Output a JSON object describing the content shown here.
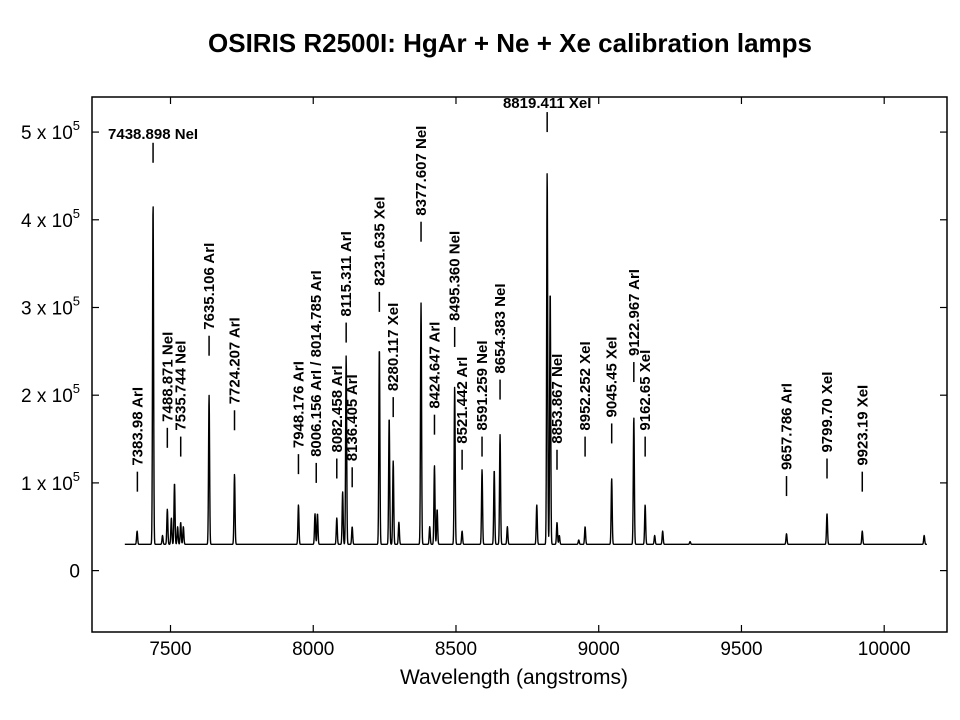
{
  "chart_data": {
    "type": "line",
    "title": "OSIRIS R2500I:  HgAr + Ne + Xe calibration lamps",
    "xlabel": "Wavelength (angstroms)",
    "ylabel": "",
    "xlim": [
      7225,
      10220
    ],
    "ylim": [
      -70000,
      540000
    ],
    "grid": false,
    "xticks": [
      {
        "value": 7500,
        "label": "7500"
      },
      {
        "value": 8000,
        "label": "8000"
      },
      {
        "value": 8500,
        "label": "8500"
      },
      {
        "value": 9000,
        "label": "9000"
      },
      {
        "value": 9500,
        "label": "9500"
      },
      {
        "value": 10000,
        "label": "10000"
      }
    ],
    "yticks": [
      {
        "value": 0,
        "mantissa": "0",
        "exp": ""
      },
      {
        "value": 100000,
        "mantissa": "1 x 10",
        "exp": "5"
      },
      {
        "value": 200000,
        "mantissa": "2 x 10",
        "exp": "5"
      },
      {
        "value": 300000,
        "mantissa": "3 x 10",
        "exp": "5"
      },
      {
        "value": 400000,
        "mantissa": "4 x 10",
        "exp": "5"
      },
      {
        "value": 500000,
        "mantissa": "5 x 10",
        "exp": "5"
      }
    ],
    "baseline": 30000,
    "x_range": [
      7340,
      10150
    ],
    "peaks": [
      [
        7383,
        45000
      ],
      [
        7438.9,
        420000
      ],
      [
        7472,
        40000
      ],
      [
        7488.9,
        70000
      ],
      [
        7503,
        60000
      ],
      [
        7514,
        100000
      ],
      [
        7525,
        50000
      ],
      [
        7535.7,
        55000
      ],
      [
        7545,
        50000
      ],
      [
        7635.1,
        200000
      ],
      [
        7724.2,
        110000
      ],
      [
        7948.2,
        75000
      ],
      [
        8006.2,
        65000
      ],
      [
        8014.8,
        65000
      ],
      [
        8082.5,
        60000
      ],
      [
        8103,
        90000
      ],
      [
        8115.3,
        245000
      ],
      [
        8136.4,
        50000
      ],
      [
        8231.6,
        255000
      ],
      [
        8266,
        175000
      ],
      [
        8280.1,
        125000
      ],
      [
        8300,
        55000
      ],
      [
        8377.6,
        305000
      ],
      [
        8408,
        50000
      ],
      [
        8424.6,
        120000
      ],
      [
        8434,
        70000
      ],
      [
        8495.4,
        210000
      ],
      [
        8521.4,
        45000
      ],
      [
        8591.3,
        115000
      ],
      [
        8634,
        115000
      ],
      [
        8654.4,
        155000
      ],
      [
        8680,
        50000
      ],
      [
        8783,
        75000
      ],
      [
        8819.4,
        455000
      ],
      [
        8830,
        320000
      ],
      [
        8853.9,
        55000
      ],
      [
        8862,
        40000
      ],
      [
        8930,
        35000
      ],
      [
        8952.3,
        50000
      ],
      [
        9045.4,
        105000
      ],
      [
        9122.97,
        175000
      ],
      [
        9162.65,
        75000
      ],
      [
        9196,
        40000
      ],
      [
        9224,
        45000
      ],
      [
        9320,
        33000
      ],
      [
        9657.8,
        42000
      ],
      [
        9799.7,
        65000
      ],
      [
        9923.2,
        45000
      ],
      [
        10140,
        40000
      ]
    ],
    "annotations": [
      {
        "x": 7383.98,
        "tip": 90000,
        "text": "7383.98 ArI",
        "rotated": true
      },
      {
        "x": 7438.898,
        "tip": 465000,
        "text": "7438.898 NeI",
        "rotated": false
      },
      {
        "x": 7488.871,
        "tip": 140000,
        "text": "7488.871 NeI",
        "rotated": true
      },
      {
        "x": 7535.744,
        "tip": 130000,
        "text": "7535.744 NeI",
        "rotated": true
      },
      {
        "x": 7635.106,
        "tip": 245000,
        "text": "7635.106 ArI",
        "rotated": true
      },
      {
        "x": 7724.207,
        "tip": 160000,
        "text": "7724.207 ArI",
        "rotated": true
      },
      {
        "x": 7948.176,
        "tip": 110000,
        "text": "7948.176 ArI",
        "rotated": true
      },
      {
        "x": 8010.47,
        "tip": 100000,
        "text": "8006.156 ArI / 8014.785 ArI",
        "rotated": true
      },
      {
        "x": 8082.458,
        "tip": 105000,
        "text": "8082.458 ArI",
        "rotated": true
      },
      {
        "x": 8115.311,
        "tip": 260000,
        "text": "8115.311 ArI",
        "rotated": true
      },
      {
        "x": 8136.405,
        "tip": 95000,
        "text": "8136.405 ArI",
        "rotated": true
      },
      {
        "x": 8231.635,
        "tip": 295000,
        "text": "8231.635 XeI",
        "rotated": true
      },
      {
        "x": 8280.117,
        "tip": 175000,
        "text": "8280.117 XeI",
        "rotated": true
      },
      {
        "x": 8377.607,
        "tip": 375000,
        "text": "8377.607 NeI",
        "rotated": true
      },
      {
        "x": 8424.647,
        "tip": 155000,
        "text": "8424.647 ArI",
        "rotated": true
      },
      {
        "x": 8495.36,
        "tip": 255000,
        "text": "8495.360 NeI",
        "rotated": true
      },
      {
        "x": 8521.442,
        "tip": 115000,
        "text": "8521.442 ArI",
        "rotated": true
      },
      {
        "x": 8591.259,
        "tip": 130000,
        "text": "8591.259 NeI",
        "rotated": true
      },
      {
        "x": 8654.383,
        "tip": 195000,
        "text": "8654.383 NeI",
        "rotated": true
      },
      {
        "x": 8819.411,
        "tip": 500000,
        "text": "8819.411 XeI",
        "rotated": false
      },
      {
        "x": 8853.867,
        "tip": 115000,
        "text": "8853.867 NeI",
        "rotated": true
      },
      {
        "x": 8952.252,
        "tip": 130000,
        "text": "8952.252 XeI",
        "rotated": true
      },
      {
        "x": 9045.45,
        "tip": 145000,
        "text": "9045.45 XeI",
        "rotated": true
      },
      {
        "x": 9122.967,
        "tip": 215000,
        "text": "9122.967 ArI",
        "rotated": true
      },
      {
        "x": 9162.65,
        "tip": 130000,
        "text": "9162.65 XeI",
        "rotated": true
      },
      {
        "x": 9657.786,
        "tip": 85000,
        "text": "9657.786 ArI",
        "rotated": true
      },
      {
        "x": 9799.7,
        "tip": 105000,
        "text": "9799.70 XeI",
        "rotated": true
      },
      {
        "x": 9923.19,
        "tip": 90000,
        "text": "9923.19 XeI",
        "rotated": true
      }
    ]
  }
}
